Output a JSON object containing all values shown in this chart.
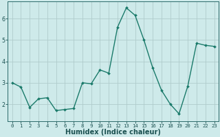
{
  "x": [
    0,
    1,
    2,
    3,
    4,
    5,
    6,
    7,
    8,
    9,
    10,
    11,
    12,
    13,
    14,
    15,
    16,
    17,
    18,
    19,
    20,
    21,
    22,
    23
  ],
  "y": [
    3.0,
    2.8,
    1.85,
    2.25,
    2.3,
    1.7,
    1.75,
    1.8,
    3.0,
    2.95,
    3.6,
    3.45,
    5.6,
    6.5,
    6.15,
    5.0,
    3.7,
    2.65,
    2.0,
    1.55,
    2.85,
    4.85,
    4.75,
    4.7
  ],
  "line_color": "#1a7a6a",
  "marker": "D",
  "marker_size": 2.0,
  "bg_color": "#ceeaea",
  "grid_color": "#b0cccc",
  "xlabel": "Humidex (Indice chaleur)",
  "ylim": [
    1.2,
    6.8
  ],
  "xlim": [
    -0.5,
    23.5
  ],
  "yticks": [
    2,
    3,
    4,
    5,
    6
  ],
  "xticks": [
    0,
    1,
    2,
    3,
    4,
    5,
    6,
    7,
    8,
    9,
    10,
    11,
    12,
    13,
    14,
    15,
    16,
    17,
    18,
    19,
    20,
    21,
    22,
    23
  ],
  "tick_fontsize": 5.2,
  "label_fontsize": 7.0,
  "spine_color": "#2a6a6a",
  "tick_color": "#1a5050",
  "linewidth": 1.0
}
